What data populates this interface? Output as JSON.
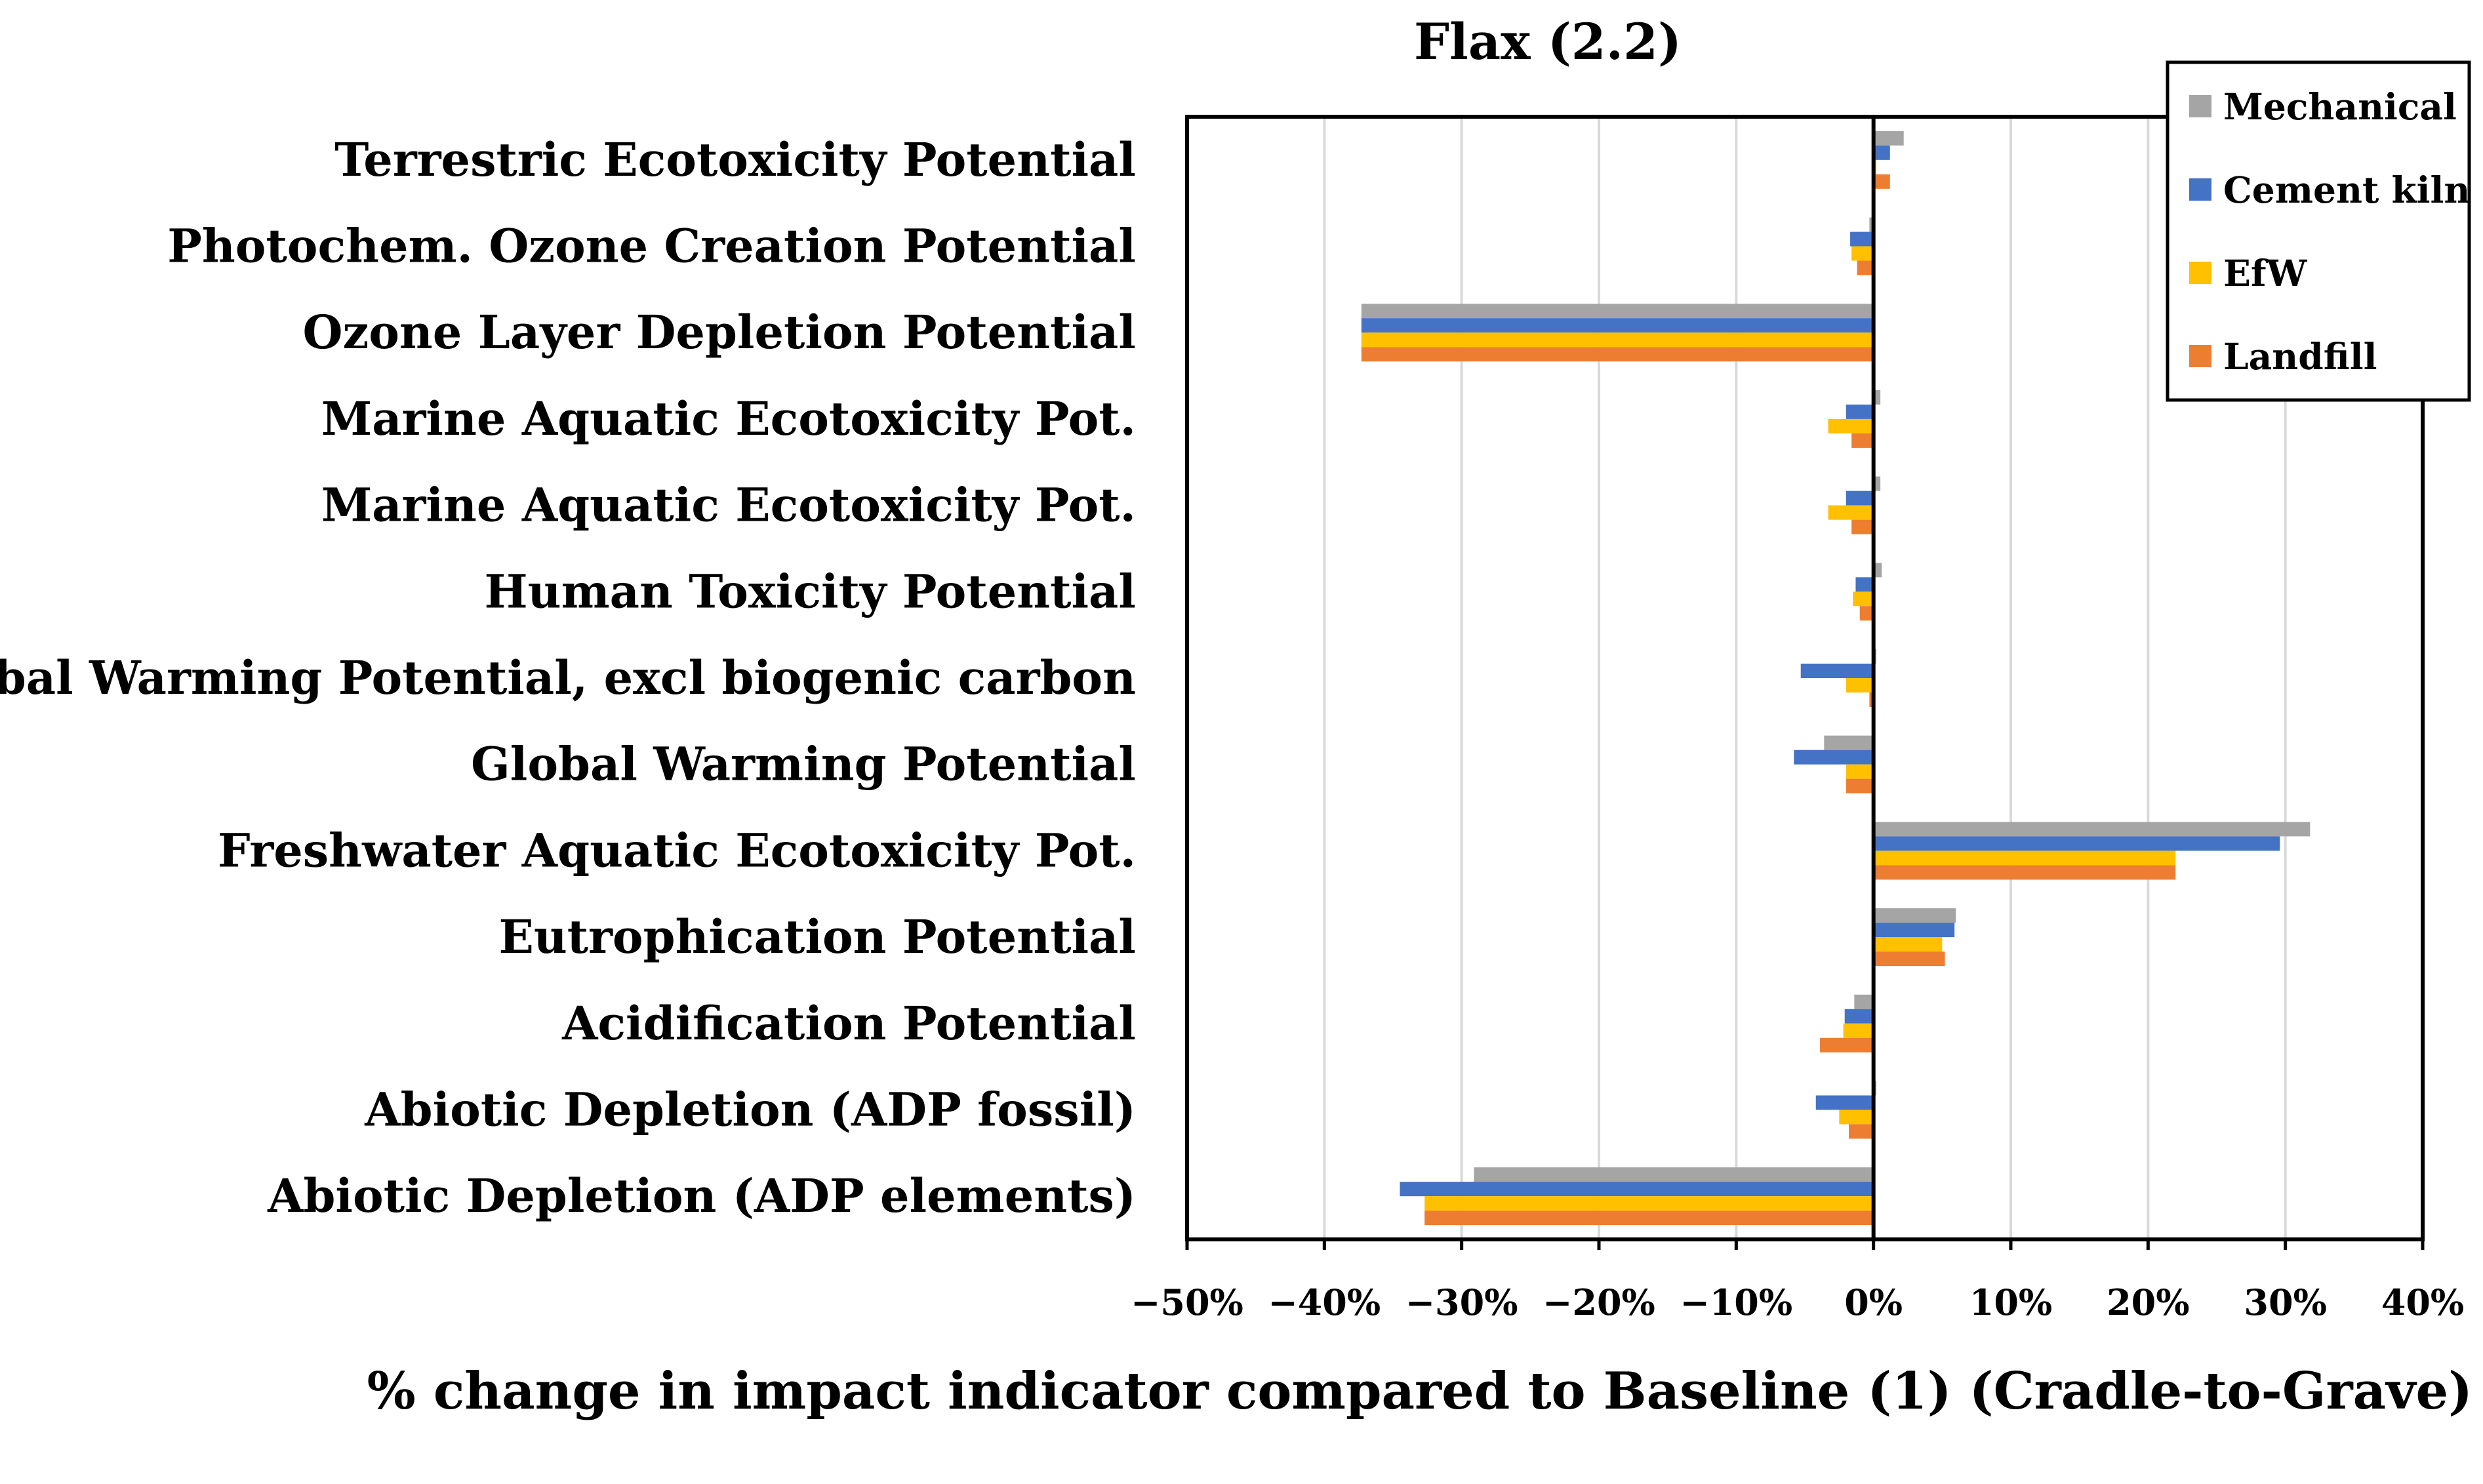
{
  "chart_data": {
    "type": "bar",
    "orientation": "horizontal",
    "title": "Flax (2.2)",
    "xlabel": "% change in impact indicator compared to Baseline (1) (Cradle-to-Grave)",
    "ylabel": "",
    "xlim": [
      -50,
      40
    ],
    "x_ticks": [
      -50,
      -40,
      -30,
      -20,
      -10,
      0,
      10,
      20,
      30,
      40
    ],
    "x_tick_labels": [
      "−50%",
      "−40%",
      "−30%",
      "−20%",
      "−10%",
      "0%",
      "10%",
      "20%",
      "30%",
      "40%"
    ],
    "grid": "vertical",
    "legend_position": "top-right",
    "categories": [
      "Terrestric Ecotoxicity Potential",
      "Photochem. Ozone Creation Potential",
      "Ozone Layer Depletion Potential",
      "Marine Aquatic Ecotoxicity Pot.",
      "Marine Aquatic Ecotoxicity Pot.",
      "Human Toxicity Potential",
      "Global Warming Potential, excl biogenic carbon",
      "Global Warming Potential",
      "Freshwater Aquatic Ecotoxicity Pot.",
      "Eutrophication Potential",
      "Acidification Potential",
      "Abiotic Depletion (ADP fossil)",
      "Abiotic Depletion (ADP elements)"
    ],
    "series": [
      {
        "name": "Mechanical",
        "color": "#a5a5a5",
        "values": [
          2.2,
          -0.3,
          -37.3,
          0.5,
          0.5,
          0.6,
          0.2,
          -3.6,
          31.8,
          6.0,
          -1.4,
          0.2,
          -29.1
        ]
      },
      {
        "name": "Cement kiln",
        "color": "#4472c4",
        "values": [
          1.2,
          -1.7,
          -37.3,
          -2.0,
          -2.0,
          -1.3,
          -5.3,
          -5.8,
          29.6,
          5.9,
          -2.1,
          -4.2,
          -34.5
        ]
      },
      {
        "name": "EfW",
        "color": "#ffc000",
        "values": [
          0.2,
          -1.6,
          -37.3,
          -3.3,
          -3.3,
          -1.5,
          -2.0,
          -2.0,
          22.0,
          5.0,
          -2.2,
          -2.5,
          -32.7
        ]
      },
      {
        "name": "Landfill",
        "color": "#ed7d31",
        "values": [
          1.2,
          -1.2,
          -37.3,
          -1.6,
          -1.6,
          -1.0,
          -0.3,
          -2.0,
          22.0,
          5.2,
          -3.9,
          -1.8,
          -32.7
        ]
      }
    ]
  }
}
